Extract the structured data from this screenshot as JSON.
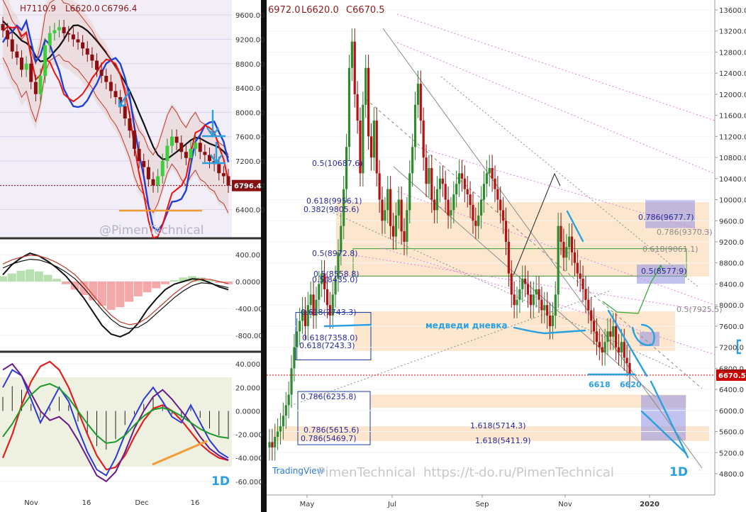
{
  "chart_data": [
    {
      "type": "candlestick",
      "panel": "left-price",
      "ohlc": {
        "h": "H7110.9",
        "l": "L6620.0",
        "c": "C6796.4"
      },
      "last_price": "6796.4",
      "ylim": [
        6000,
        9800
      ],
      "y_ticks": [
        "9600.00",
        "9200.00",
        "8800.00",
        "8400.00",
        "8000.00",
        "7600.00",
        "7200.00",
        "6800.00",
        "6400.00"
      ],
      "x_ticks": [
        "Nov",
        "16",
        "Dec",
        "16"
      ],
      "watermark": "@PimenTechnical",
      "closes": [
        9350,
        9200,
        9000,
        8900,
        8700,
        8800,
        8500,
        8300,
        8600,
        9100,
        9300,
        9350,
        9400,
        9300,
        9280,
        9200,
        9150,
        9050,
        8950,
        8850,
        8700,
        8600,
        8500,
        8350,
        8250,
        8100,
        7900,
        7700,
        7400,
        7200,
        7100,
        6900,
        6800,
        6950,
        7200,
        7450,
        7600,
        7500,
        7350,
        7250,
        7400,
        7500,
        7350,
        7300,
        7200,
        7150,
        7000,
        6950,
        6796
      ]
    },
    {
      "type": "line",
      "panel": "left-macd",
      "y_ticks": [
        "400.00",
        "0.0000",
        "-400.00",
        "-800.00"
      ],
      "ylim": [
        -1000,
        600
      ],
      "fast": [
        100,
        250,
        350,
        420,
        380,
        300,
        200,
        80,
        -80,
        -250,
        -450,
        -650,
        -780,
        -820,
        -760,
        -620,
        -420,
        -260,
        -120,
        -40,
        0,
        40,
        30,
        -20,
        -80,
        -120
      ],
      "slow": [
        200,
        260,
        300,
        330,
        320,
        280,
        220,
        140,
        40,
        -100,
        -260,
        -420,
        -560,
        -660,
        -700,
        -680,
        -600,
        -480,
        -360,
        -240,
        -140,
        -60,
        -20,
        -30,
        -60,
        -90
      ],
      "hist": [
        80,
        120,
        160,
        180,
        150,
        100,
        40,
        -40,
        -120,
        -200,
        -280,
        -360,
        -420,
        -380,
        -300,
        -220,
        -160,
        -100,
        -40,
        20,
        60,
        80,
        60,
        20,
        -20,
        -40
      ]
    },
    {
      "type": "line",
      "panel": "left-oscillator",
      "y_ticks": [
        "40.000",
        "20.000",
        "0.0000",
        "-20.000",
        "-40.000",
        "-60.000"
      ],
      "ylim": [
        -68,
        48
      ],
      "label_1d": "1D",
      "red": [
        -40,
        -20,
        5,
        25,
        38,
        42,
        35,
        20,
        0,
        -20,
        -38,
        -50,
        -48,
        -38,
        -22,
        -8,
        2,
        5,
        0,
        -8,
        -18,
        -28,
        -35,
        -40,
        -42
      ],
      "blue": [
        20,
        35,
        30,
        10,
        -10,
        5,
        20,
        8,
        -15,
        -35,
        -50,
        -55,
        -40,
        -20,
        -5,
        10,
        20,
        8,
        -5,
        -10,
        5,
        -10,
        -25,
        -35,
        -40
      ],
      "purple": [
        35,
        40,
        30,
        15,
        0,
        -8,
        -5,
        -12,
        -25,
        -40,
        -55,
        -60,
        -52,
        -35,
        -15,
        0,
        12,
        18,
        10,
        0,
        -10,
        -22,
        -32,
        -38,
        -42
      ]
    },
    {
      "type": "candlestick",
      "panel": "right-main",
      "ohlc": {
        "o": "6972.0",
        "l": "L6620.0",
        "c": "C6670.5"
      },
      "last_price": "6670.5",
      "ylim": [
        4500,
        13750
      ],
      "y_ticks": [
        "13600.0",
        "13200.0",
        "12800.0",
        "12400.0",
        "12000.0",
        "11600.0",
        "11200.0",
        "10800.0",
        "10400.0",
        "10000.0",
        "9600.0",
        "9200.0",
        "8800.0",
        "8400.0",
        "8000.0",
        "7600.0",
        "7200.0",
        "6800.0",
        "6400.0",
        "6000.0",
        "5600.0",
        "5200.0",
        "4800.0"
      ],
      "x_ticks": [
        "May",
        "Jul",
        "Sep",
        "Nov",
        "2020"
      ],
      "fib_labels": [
        "0.5(10687.6)",
        "0.618(9956.1)",
        "0.382(9805.6)",
        "0.786(9677.7)",
        "0.786(9370.3)",
        "0.5(8972.8)",
        "0.618(9061.1)",
        "0.5(8558.8)",
        "0.5(8435.0)",
        "0.5(8577.9)",
        "0.5(7925.5)",
        "0.618(7743.3)",
        "0.618(7358.0)",
        "0.618(7243.3)",
        "0.786(6235.8)",
        "0.786(5615.6)",
        "0.786(5469.7)",
        "1.618(5714.3)",
        "1.618(5411.9)"
      ],
      "annotation": "медведи дневка",
      "level_labels": [
        "6618",
        "6620"
      ],
      "watermark_left": "TradingView",
      "watermark_mid": "PimenTechnical",
      "watermark_url": "https://t-do.ru/PimenTechnical",
      "label_1d": "1D",
      "closes": [
        5400,
        5300,
        5500,
        5600,
        5700,
        5900,
        6100,
        6300,
        6800,
        7200,
        7500,
        7700,
        7900,
        7600,
        8000,
        8200,
        7800,
        8100,
        8400,
        8600,
        8300,
        8000,
        7800,
        8200,
        8500,
        9000,
        9500,
        10200,
        11000,
        12500,
        13000,
        12000,
        11500,
        10500,
        11800,
        12500,
        11200,
        10800,
        11500,
        10500,
        10000,
        9600,
        9800,
        10200,
        9500,
        9300,
        9700,
        10000,
        9400,
        9200,
        9800,
        10500,
        11000,
        11800,
        12200,
        11500,
        10800,
        10300,
        10600,
        10000,
        9800,
        10200,
        10400,
        10300,
        10000,
        9700,
        9800,
        10100,
        10300,
        10500,
        10400,
        10200,
        10100,
        9900,
        9600,
        9500,
        9700,
        10000,
        10300,
        10500,
        10600,
        10400,
        10200,
        10000,
        9800,
        9600,
        9200,
        8600,
        8200,
        8000,
        8100,
        8300,
        8500,
        8400,
        8200,
        8000,
        8200,
        8300,
        8100,
        7900,
        8000,
        7800,
        7600,
        7800,
        8200,
        9500,
        9200,
        8900,
        9100,
        9300,
        9000,
        8800,
        8600,
        8500,
        8300,
        8100,
        7900,
        7700,
        7500,
        7300,
        7200,
        7100,
        7300,
        7500,
        7400,
        7600,
        7200,
        7100,
        7300,
        7000,
        6900,
        6670
      ]
    }
  ]
}
